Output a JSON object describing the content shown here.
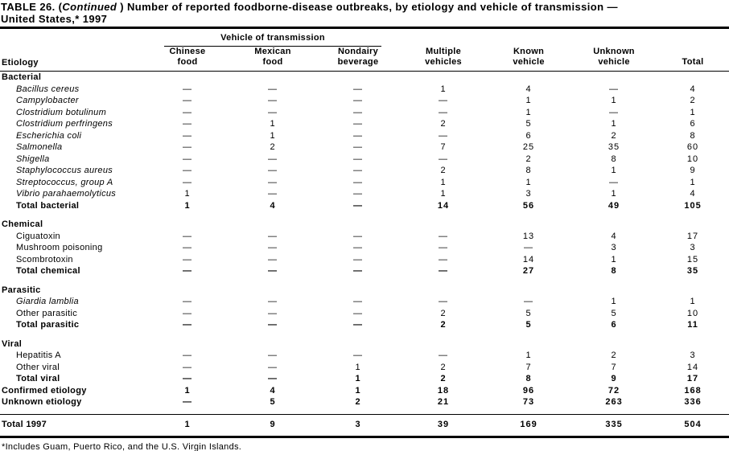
{
  "page": {
    "title_prefix": "TABLE 26. (",
    "title_continued": "Continued",
    "title_rest": " ) Number of reported foodborne-disease outbreaks, by etiology and vehicle of transmission —",
    "title_line2": "United States,* 1997",
    "footnote": "*Includes Guam, Puerto Rico, and the U.S. Virgin Islands."
  },
  "table": {
    "etiology_label": "Etiology",
    "vehicle_group_label": "Vehicle of transmission",
    "columns": [
      {
        "line1": "Chinese",
        "line2": "food"
      },
      {
        "line1": "Mexican",
        "line2": "food"
      },
      {
        "line1": "Nondairy",
        "line2": "beverage"
      },
      {
        "line1": "Multiple",
        "line2": "vehicles"
      },
      {
        "line1": "Known",
        "line2": "vehicle"
      },
      {
        "line1": "Unknown",
        "line2": "vehicle"
      },
      {
        "line1": "",
        "line2": "Total"
      }
    ],
    "sections": [
      {
        "name": "Bacterial",
        "rows": [
          {
            "label": "Bacillus cereus",
            "italic": true,
            "bold": false,
            "values": [
              "—",
              "—",
              "—",
              "1",
              "4",
              "—",
              "4"
            ]
          },
          {
            "label": "Campylobacter",
            "italic": true,
            "bold": false,
            "values": [
              "—",
              "—",
              "—",
              "—",
              "1",
              "1",
              "2"
            ]
          },
          {
            "label": "Clostridium botulinum",
            "italic": true,
            "bold": false,
            "values": [
              "—",
              "—",
              "—",
              "—",
              "1",
              "—",
              "1"
            ]
          },
          {
            "label": "Clostridium perfringens",
            "italic": true,
            "bold": false,
            "values": [
              "—",
              "1",
              "—",
              "2",
              "5",
              "1",
              "6"
            ]
          },
          {
            "label": "Escherichia coli",
            "italic": true,
            "bold": false,
            "values": [
              "—",
              "1",
              "—",
              "—",
              "6",
              "2",
              "8"
            ]
          },
          {
            "label": "Salmonella",
            "italic": true,
            "bold": false,
            "values": [
              "—",
              "2",
              "—",
              "7",
              "25",
              "35",
              "60"
            ]
          },
          {
            "label": "Shigella",
            "italic": true,
            "bold": false,
            "values": [
              "—",
              "—",
              "—",
              "—",
              "2",
              "8",
              "10"
            ]
          },
          {
            "label": "Staphylococcus aureus",
            "italic": true,
            "bold": false,
            "values": [
              "—",
              "—",
              "—",
              "2",
              "8",
              "1",
              "9"
            ]
          },
          {
            "label": "Streptococcus, group A",
            "italic": true,
            "bold": false,
            "values": [
              "—",
              "—",
              "—",
              "1",
              "1",
              "—",
              "1"
            ]
          },
          {
            "label": "Vibrio parahaemolyticus",
            "italic": true,
            "bold": false,
            "values": [
              "1",
              "—",
              "—",
              "1",
              "3",
              "1",
              "4"
            ]
          },
          {
            "label": "Total bacterial",
            "italic": false,
            "bold": true,
            "values": [
              "1",
              "4",
              "—",
              "14",
              "56",
              "49",
              "105"
            ]
          }
        ]
      },
      {
        "name": "Chemical",
        "rows": [
          {
            "label": "Ciguatoxin",
            "italic": false,
            "bold": false,
            "values": [
              "—",
              "—",
              "—",
              "—",
              "13",
              "4",
              "17"
            ]
          },
          {
            "label": "Mushroom poisoning",
            "italic": false,
            "bold": false,
            "values": [
              "—",
              "—",
              "—",
              "—",
              "—",
              "3",
              "3"
            ]
          },
          {
            "label": "Scombrotoxin",
            "italic": false,
            "bold": false,
            "values": [
              "—",
              "—",
              "—",
              "—",
              "14",
              "1",
              "15"
            ]
          },
          {
            "label": "Total chemical",
            "italic": false,
            "bold": true,
            "values": [
              "—",
              "—",
              "—",
              "—",
              "27",
              "8",
              "35"
            ]
          }
        ]
      },
      {
        "name": "Parasitic",
        "rows": [
          {
            "label": "Giardia lamblia",
            "italic": true,
            "bold": false,
            "values": [
              "—",
              "—",
              "—",
              "—",
              "—",
              "1",
              "1"
            ]
          },
          {
            "label": "Other parasitic",
            "italic": false,
            "bold": false,
            "values": [
              "—",
              "—",
              "—",
              "2",
              "5",
              "5",
              "10"
            ]
          },
          {
            "label": "Total parasitic",
            "italic": false,
            "bold": true,
            "values": [
              "—",
              "—",
              "—",
              "2",
              "5",
              "6",
              "11"
            ]
          }
        ]
      },
      {
        "name": "Viral",
        "rows": [
          {
            "label": "Hepatitis A",
            "italic": false,
            "bold": false,
            "values": [
              "—",
              "—",
              "—",
              "—",
              "1",
              "2",
              "3"
            ]
          },
          {
            "label": "Other viral",
            "italic": false,
            "bold": false,
            "values": [
              "—",
              "—",
              "1",
              "2",
              "7",
              "7",
              "14"
            ]
          },
          {
            "label": "Total viral",
            "italic": false,
            "bold": true,
            "values": [
              "—",
              "—",
              "1",
              "2",
              "8",
              "9",
              "17"
            ]
          }
        ]
      }
    ],
    "summary_rows": [
      {
        "label": "Confirmed etiology",
        "values": [
          "1",
          "4",
          "1",
          "18",
          "96",
          "72",
          "168"
        ]
      },
      {
        "label": "Unknown etiology",
        "values": [
          "—",
          "5",
          "2",
          "21",
          "73",
          "263",
          "336"
        ]
      }
    ],
    "total_row": {
      "label": "Total 1997",
      "values": [
        "1",
        "9",
        "3",
        "39",
        "169",
        "335",
        "504"
      ]
    }
  }
}
